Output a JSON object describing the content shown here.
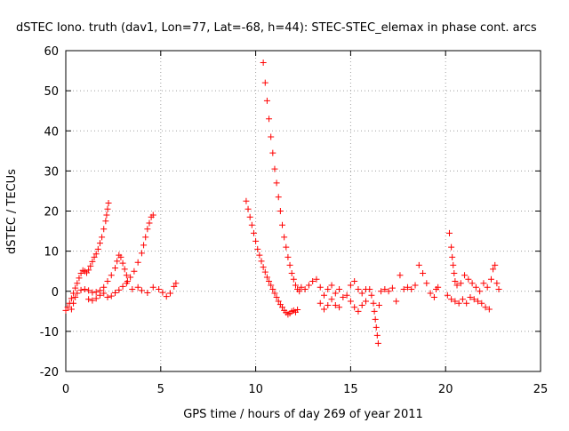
{
  "chart_data": {
    "type": "scatter",
    "title": "dSTEC Iono. truth (dav1, Lon=77, Lat=-68, h=44): STEC-STEC_elemax in phase cont. arcs",
    "xlabel": "GPS time / hours of day 269 of year 2011",
    "ylabel": "dSTEC  / TECUs",
    "xlim": [
      0,
      25
    ],
    "ylim": [
      -20,
      60
    ],
    "x_ticks": [
      0,
      5,
      10,
      15,
      20,
      25
    ],
    "y_ticks": [
      -20,
      -10,
      0,
      10,
      20,
      30,
      40,
      50,
      60
    ],
    "grid": true,
    "grid_style": "dotted",
    "marker": "+",
    "marker_color": "#ff0000",
    "series": [
      {
        "points": [
          [
            0.0,
            -4.8
          ],
          [
            0.1,
            -4.0
          ],
          [
            0.2,
            -3.0
          ],
          [
            0.3,
            -1.8
          ],
          [
            0.4,
            -0.5
          ],
          [
            0.5,
            0.8
          ],
          [
            0.6,
            2.0
          ],
          [
            0.7,
            3.3
          ],
          [
            0.8,
            4.5
          ],
          [
            0.9,
            5.2
          ],
          [
            1.0,
            5.0
          ],
          [
            1.1,
            4.6
          ],
          [
            1.2,
            5.3
          ],
          [
            1.3,
            6.3
          ],
          [
            1.4,
            7.4
          ],
          [
            1.5,
            8.5
          ],
          [
            1.6,
            9.3
          ],
          [
            1.7,
            10.5
          ],
          [
            1.8,
            12.0
          ],
          [
            1.9,
            13.5
          ],
          [
            2.0,
            15.5
          ],
          [
            2.1,
            17.5
          ],
          [
            2.15,
            19.0
          ],
          [
            2.2,
            20.5
          ],
          [
            2.25,
            22.0
          ],
          [
            0.3,
            -4.5
          ],
          [
            0.4,
            -3.0
          ],
          [
            0.5,
            -1.5
          ],
          [
            0.6,
            -0.5
          ],
          [
            0.8,
            0.3
          ],
          [
            1.0,
            0.5
          ],
          [
            1.2,
            0.2
          ],
          [
            1.4,
            -0.3
          ],
          [
            1.6,
            -0.2
          ],
          [
            1.8,
            0.2
          ],
          [
            2.0,
            1.0
          ],
          [
            2.2,
            2.5
          ],
          [
            2.4,
            4.0
          ],
          [
            2.6,
            5.8
          ],
          [
            2.7,
            7.5
          ],
          [
            2.8,
            9.0
          ],
          [
            2.9,
            8.5
          ],
          [
            3.0,
            7.0
          ],
          [
            3.1,
            5.5
          ],
          [
            3.2,
            4.0
          ],
          [
            3.25,
            2.5
          ],
          [
            1.2,
            -2.0
          ],
          [
            1.4,
            -2.3
          ],
          [
            1.6,
            -1.8
          ],
          [
            1.8,
            -1.0
          ],
          [
            2.0,
            -0.5
          ],
          [
            2.2,
            -1.5
          ],
          [
            2.4,
            -1.2
          ],
          [
            2.6,
            -0.4
          ],
          [
            2.8,
            0.3
          ],
          [
            3.0,
            1.2
          ],
          [
            3.2,
            2.0
          ],
          [
            3.4,
            3.5
          ],
          [
            3.6,
            5.0
          ],
          [
            3.8,
            7.2
          ],
          [
            4.0,
            9.5
          ],
          [
            4.1,
            11.5
          ],
          [
            4.2,
            13.5
          ],
          [
            4.3,
            15.5
          ],
          [
            4.4,
            17.0
          ],
          [
            4.5,
            18.5
          ],
          [
            4.6,
            19.0
          ],
          [
            3.5,
            0.5
          ],
          [
            3.8,
            1.0
          ],
          [
            4.0,
            0.2
          ],
          [
            4.3,
            -0.4
          ],
          [
            4.6,
            1.0
          ],
          [
            4.9,
            0.5
          ],
          [
            5.1,
            -0.3
          ],
          [
            5.3,
            -1.3
          ],
          [
            5.5,
            -0.5
          ],
          [
            5.7,
            1.2
          ],
          [
            5.8,
            2.0
          ],
          [
            9.5,
            22.5
          ],
          [
            9.6,
            20.5
          ],
          [
            9.7,
            18.5
          ],
          [
            9.8,
            16.5
          ],
          [
            9.9,
            14.5
          ],
          [
            10.0,
            12.5
          ],
          [
            10.1,
            10.5
          ],
          [
            10.2,
            9.0
          ],
          [
            10.3,
            7.5
          ],
          [
            10.4,
            6.0
          ],
          [
            10.5,
            4.8
          ],
          [
            10.6,
            3.5
          ],
          [
            10.7,
            2.5
          ],
          [
            10.8,
            1.5
          ],
          [
            10.9,
            0.5
          ],
          [
            11.0,
            -0.5
          ],
          [
            11.1,
            -1.5
          ],
          [
            11.2,
            -2.5
          ],
          [
            11.3,
            -3.3
          ],
          [
            11.4,
            -4.0
          ],
          [
            11.5,
            -4.8
          ],
          [
            11.6,
            -5.3
          ],
          [
            11.7,
            -5.8
          ],
          [
            11.8,
            -5.5
          ],
          [
            11.9,
            -5.0
          ],
          [
            12.0,
            -4.8
          ],
          [
            12.1,
            -5.2
          ],
          [
            12.2,
            -4.6
          ],
          [
            10.4,
            57.0
          ],
          [
            10.5,
            52.0
          ],
          [
            10.6,
            47.5
          ],
          [
            10.7,
            43.0
          ],
          [
            10.8,
            38.5
          ],
          [
            10.9,
            34.5
          ],
          [
            11.0,
            30.5
          ],
          [
            11.1,
            27.0
          ],
          [
            11.2,
            23.5
          ],
          [
            11.3,
            20.0
          ],
          [
            11.4,
            16.5
          ],
          [
            11.5,
            13.5
          ],
          [
            11.6,
            11.0
          ],
          [
            11.7,
            8.5
          ],
          [
            11.8,
            6.5
          ],
          [
            11.9,
            4.5
          ],
          [
            12.0,
            3.0
          ],
          [
            12.1,
            1.5
          ],
          [
            12.2,
            0.5
          ],
          [
            12.3,
            0.0
          ],
          [
            12.4,
            1.0
          ],
          [
            12.6,
            0.5
          ],
          [
            12.8,
            1.5
          ],
          [
            13.0,
            2.5
          ],
          [
            13.2,
            3.0
          ],
          [
            13.4,
            1.0
          ],
          [
            13.6,
            -1.0
          ],
          [
            13.8,
            0.5
          ],
          [
            14.0,
            1.5
          ],
          [
            14.2,
            -0.5
          ],
          [
            14.4,
            0.5
          ],
          [
            14.6,
            -1.5
          ],
          [
            14.8,
            -1.0
          ],
          [
            15.0,
            1.5
          ],
          [
            15.2,
            2.5
          ],
          [
            15.4,
            0.5
          ],
          [
            15.6,
            -0.5
          ],
          [
            15.8,
            0.5
          ],
          [
            13.4,
            -3.0
          ],
          [
            13.6,
            -4.5
          ],
          [
            13.8,
            -3.5
          ],
          [
            14.0,
            -2.0
          ],
          [
            14.2,
            -3.5
          ],
          [
            14.4,
            -4.0
          ],
          [
            15.0,
            -2.5
          ],
          [
            15.2,
            -4.0
          ],
          [
            15.4,
            -5.0
          ],
          [
            15.6,
            -3.5
          ],
          [
            15.8,
            -2.5
          ],
          [
            16.0,
            0.5
          ],
          [
            16.1,
            -1.0
          ],
          [
            16.2,
            -3.0
          ],
          [
            16.25,
            -5.0
          ],
          [
            16.3,
            -7.0
          ],
          [
            16.35,
            -9.0
          ],
          [
            16.4,
            -11.0
          ],
          [
            16.45,
            -13.0
          ],
          [
            16.5,
            -3.5
          ],
          [
            16.6,
            0.0
          ],
          [
            16.8,
            0.5
          ],
          [
            17.0,
            0.0
          ],
          [
            17.2,
            0.8
          ],
          [
            17.4,
            -2.5
          ],
          [
            17.6,
            4.0
          ],
          [
            17.8,
            0.5
          ],
          [
            18.0,
            1.0
          ],
          [
            18.2,
            0.5
          ],
          [
            18.4,
            1.5
          ],
          [
            18.6,
            6.5
          ],
          [
            18.8,
            4.5
          ],
          [
            19.0,
            2.0
          ],
          [
            19.2,
            -0.5
          ],
          [
            19.4,
            -1.5
          ],
          [
            19.5,
            0.5
          ],
          [
            19.6,
            1.0
          ],
          [
            20.2,
            14.5
          ],
          [
            20.3,
            11.0
          ],
          [
            20.35,
            8.5
          ],
          [
            20.4,
            6.5
          ],
          [
            20.45,
            4.5
          ],
          [
            20.5,
            2.5
          ],
          [
            20.1,
            -1.0
          ],
          [
            20.3,
            -2.0
          ],
          [
            20.5,
            -2.5
          ],
          [
            20.7,
            -3.0
          ],
          [
            20.9,
            -2.0
          ],
          [
            21.1,
            -3.0
          ],
          [
            21.3,
            -1.5
          ],
          [
            21.5,
            -2.0
          ],
          [
            21.7,
            -2.5
          ],
          [
            21.9,
            -3.0
          ],
          [
            22.1,
            -4.0
          ],
          [
            22.3,
            -4.5
          ],
          [
            20.6,
            1.5
          ],
          [
            20.8,
            2.0
          ],
          [
            21.0,
            4.0
          ],
          [
            21.2,
            3.0
          ],
          [
            21.4,
            2.0
          ],
          [
            21.6,
            1.0
          ],
          [
            21.8,
            0.0
          ],
          [
            22.0,
            2.0
          ],
          [
            22.2,
            1.0
          ],
          [
            22.4,
            3.0
          ],
          [
            22.5,
            5.5
          ],
          [
            22.6,
            6.5
          ],
          [
            22.7,
            2.0
          ],
          [
            22.8,
            0.5
          ]
        ]
      }
    ]
  }
}
